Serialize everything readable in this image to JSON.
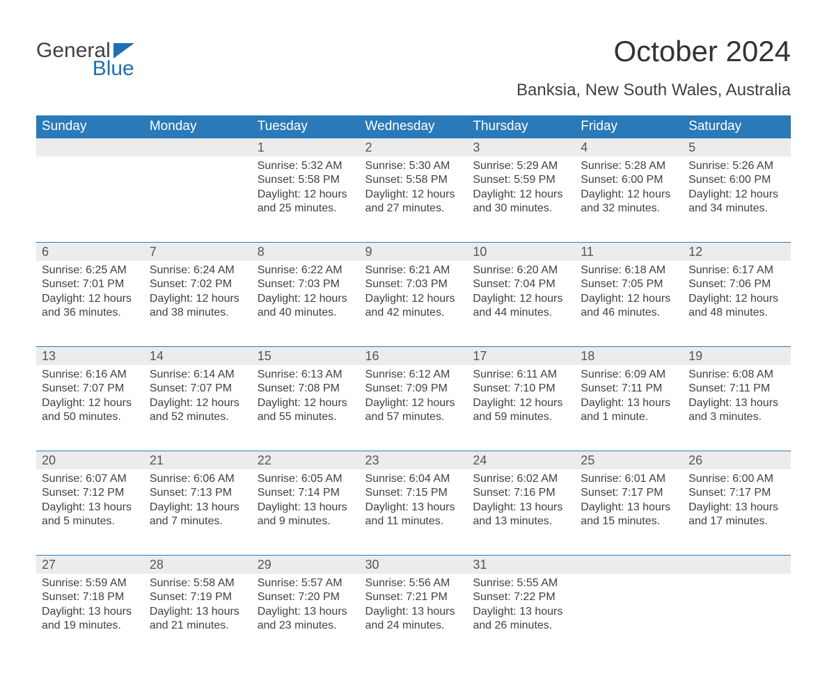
{
  "logo": {
    "word1": "General",
    "word2": "Blue",
    "flag_color": "#1f6fb2"
  },
  "title": "October 2024",
  "location": "Banksia, New South Wales, Australia",
  "colors": {
    "header_bg": "#2a7ab9",
    "header_text": "#ffffff",
    "daynum_bg": "#ececec",
    "cell_border": "#2a7ab9",
    "body_text": "#404040"
  },
  "weekdays": [
    "Sunday",
    "Monday",
    "Tuesday",
    "Wednesday",
    "Thursday",
    "Friday",
    "Saturday"
  ],
  "weeks": [
    [
      {
        "day": "",
        "sunrise": "",
        "sunset": "",
        "daylight": ""
      },
      {
        "day": "",
        "sunrise": "",
        "sunset": "",
        "daylight": ""
      },
      {
        "day": "1",
        "sunrise": "Sunrise: 5:32 AM",
        "sunset": "Sunset: 5:58 PM",
        "daylight": "Daylight: 12 hours and 25 minutes."
      },
      {
        "day": "2",
        "sunrise": "Sunrise: 5:30 AM",
        "sunset": "Sunset: 5:58 PM",
        "daylight": "Daylight: 12 hours and 27 minutes."
      },
      {
        "day": "3",
        "sunrise": "Sunrise: 5:29 AM",
        "sunset": "Sunset: 5:59 PM",
        "daylight": "Daylight: 12 hours and 30 minutes."
      },
      {
        "day": "4",
        "sunrise": "Sunrise: 5:28 AM",
        "sunset": "Sunset: 6:00 PM",
        "daylight": "Daylight: 12 hours and 32 minutes."
      },
      {
        "day": "5",
        "sunrise": "Sunrise: 5:26 AM",
        "sunset": "Sunset: 6:00 PM",
        "daylight": "Daylight: 12 hours and 34 minutes."
      }
    ],
    [
      {
        "day": "6",
        "sunrise": "Sunrise: 6:25 AM",
        "sunset": "Sunset: 7:01 PM",
        "daylight": "Daylight: 12 hours and 36 minutes."
      },
      {
        "day": "7",
        "sunrise": "Sunrise: 6:24 AM",
        "sunset": "Sunset: 7:02 PM",
        "daylight": "Daylight: 12 hours and 38 minutes."
      },
      {
        "day": "8",
        "sunrise": "Sunrise: 6:22 AM",
        "sunset": "Sunset: 7:03 PM",
        "daylight": "Daylight: 12 hours and 40 minutes."
      },
      {
        "day": "9",
        "sunrise": "Sunrise: 6:21 AM",
        "sunset": "Sunset: 7:03 PM",
        "daylight": "Daylight: 12 hours and 42 minutes."
      },
      {
        "day": "10",
        "sunrise": "Sunrise: 6:20 AM",
        "sunset": "Sunset: 7:04 PM",
        "daylight": "Daylight: 12 hours and 44 minutes."
      },
      {
        "day": "11",
        "sunrise": "Sunrise: 6:18 AM",
        "sunset": "Sunset: 7:05 PM",
        "daylight": "Daylight: 12 hours and 46 minutes."
      },
      {
        "day": "12",
        "sunrise": "Sunrise: 6:17 AM",
        "sunset": "Sunset: 7:06 PM",
        "daylight": "Daylight: 12 hours and 48 minutes."
      }
    ],
    [
      {
        "day": "13",
        "sunrise": "Sunrise: 6:16 AM",
        "sunset": "Sunset: 7:07 PM",
        "daylight": "Daylight: 12 hours and 50 minutes."
      },
      {
        "day": "14",
        "sunrise": "Sunrise: 6:14 AM",
        "sunset": "Sunset: 7:07 PM",
        "daylight": "Daylight: 12 hours and 52 minutes."
      },
      {
        "day": "15",
        "sunrise": "Sunrise: 6:13 AM",
        "sunset": "Sunset: 7:08 PM",
        "daylight": "Daylight: 12 hours and 55 minutes."
      },
      {
        "day": "16",
        "sunrise": "Sunrise: 6:12 AM",
        "sunset": "Sunset: 7:09 PM",
        "daylight": "Daylight: 12 hours and 57 minutes."
      },
      {
        "day": "17",
        "sunrise": "Sunrise: 6:11 AM",
        "sunset": "Sunset: 7:10 PM",
        "daylight": "Daylight: 12 hours and 59 minutes."
      },
      {
        "day": "18",
        "sunrise": "Sunrise: 6:09 AM",
        "sunset": "Sunset: 7:11 PM",
        "daylight": "Daylight: 13 hours and 1 minute."
      },
      {
        "day": "19",
        "sunrise": "Sunrise: 6:08 AM",
        "sunset": "Sunset: 7:11 PM",
        "daylight": "Daylight: 13 hours and 3 minutes."
      }
    ],
    [
      {
        "day": "20",
        "sunrise": "Sunrise: 6:07 AM",
        "sunset": "Sunset: 7:12 PM",
        "daylight": "Daylight: 13 hours and 5 minutes."
      },
      {
        "day": "21",
        "sunrise": "Sunrise: 6:06 AM",
        "sunset": "Sunset: 7:13 PM",
        "daylight": "Daylight: 13 hours and 7 minutes."
      },
      {
        "day": "22",
        "sunrise": "Sunrise: 6:05 AM",
        "sunset": "Sunset: 7:14 PM",
        "daylight": "Daylight: 13 hours and 9 minutes."
      },
      {
        "day": "23",
        "sunrise": "Sunrise: 6:04 AM",
        "sunset": "Sunset: 7:15 PM",
        "daylight": "Daylight: 13 hours and 11 minutes."
      },
      {
        "day": "24",
        "sunrise": "Sunrise: 6:02 AM",
        "sunset": "Sunset: 7:16 PM",
        "daylight": "Daylight: 13 hours and 13 minutes."
      },
      {
        "day": "25",
        "sunrise": "Sunrise: 6:01 AM",
        "sunset": "Sunset: 7:17 PM",
        "daylight": "Daylight: 13 hours and 15 minutes."
      },
      {
        "day": "26",
        "sunrise": "Sunrise: 6:00 AM",
        "sunset": "Sunset: 7:17 PM",
        "daylight": "Daylight: 13 hours and 17 minutes."
      }
    ],
    [
      {
        "day": "27",
        "sunrise": "Sunrise: 5:59 AM",
        "sunset": "Sunset: 7:18 PM",
        "daylight": "Daylight: 13 hours and 19 minutes."
      },
      {
        "day": "28",
        "sunrise": "Sunrise: 5:58 AM",
        "sunset": "Sunset: 7:19 PM",
        "daylight": "Daylight: 13 hours and 21 minutes."
      },
      {
        "day": "29",
        "sunrise": "Sunrise: 5:57 AM",
        "sunset": "Sunset: 7:20 PM",
        "daylight": "Daylight: 13 hours and 23 minutes."
      },
      {
        "day": "30",
        "sunrise": "Sunrise: 5:56 AM",
        "sunset": "Sunset: 7:21 PM",
        "daylight": "Daylight: 13 hours and 24 minutes."
      },
      {
        "day": "31",
        "sunrise": "Sunrise: 5:55 AM",
        "sunset": "Sunset: 7:22 PM",
        "daylight": "Daylight: 13 hours and 26 minutes."
      },
      {
        "day": "",
        "sunrise": "",
        "sunset": "",
        "daylight": ""
      },
      {
        "day": "",
        "sunrise": "",
        "sunset": "",
        "daylight": ""
      }
    ]
  ]
}
